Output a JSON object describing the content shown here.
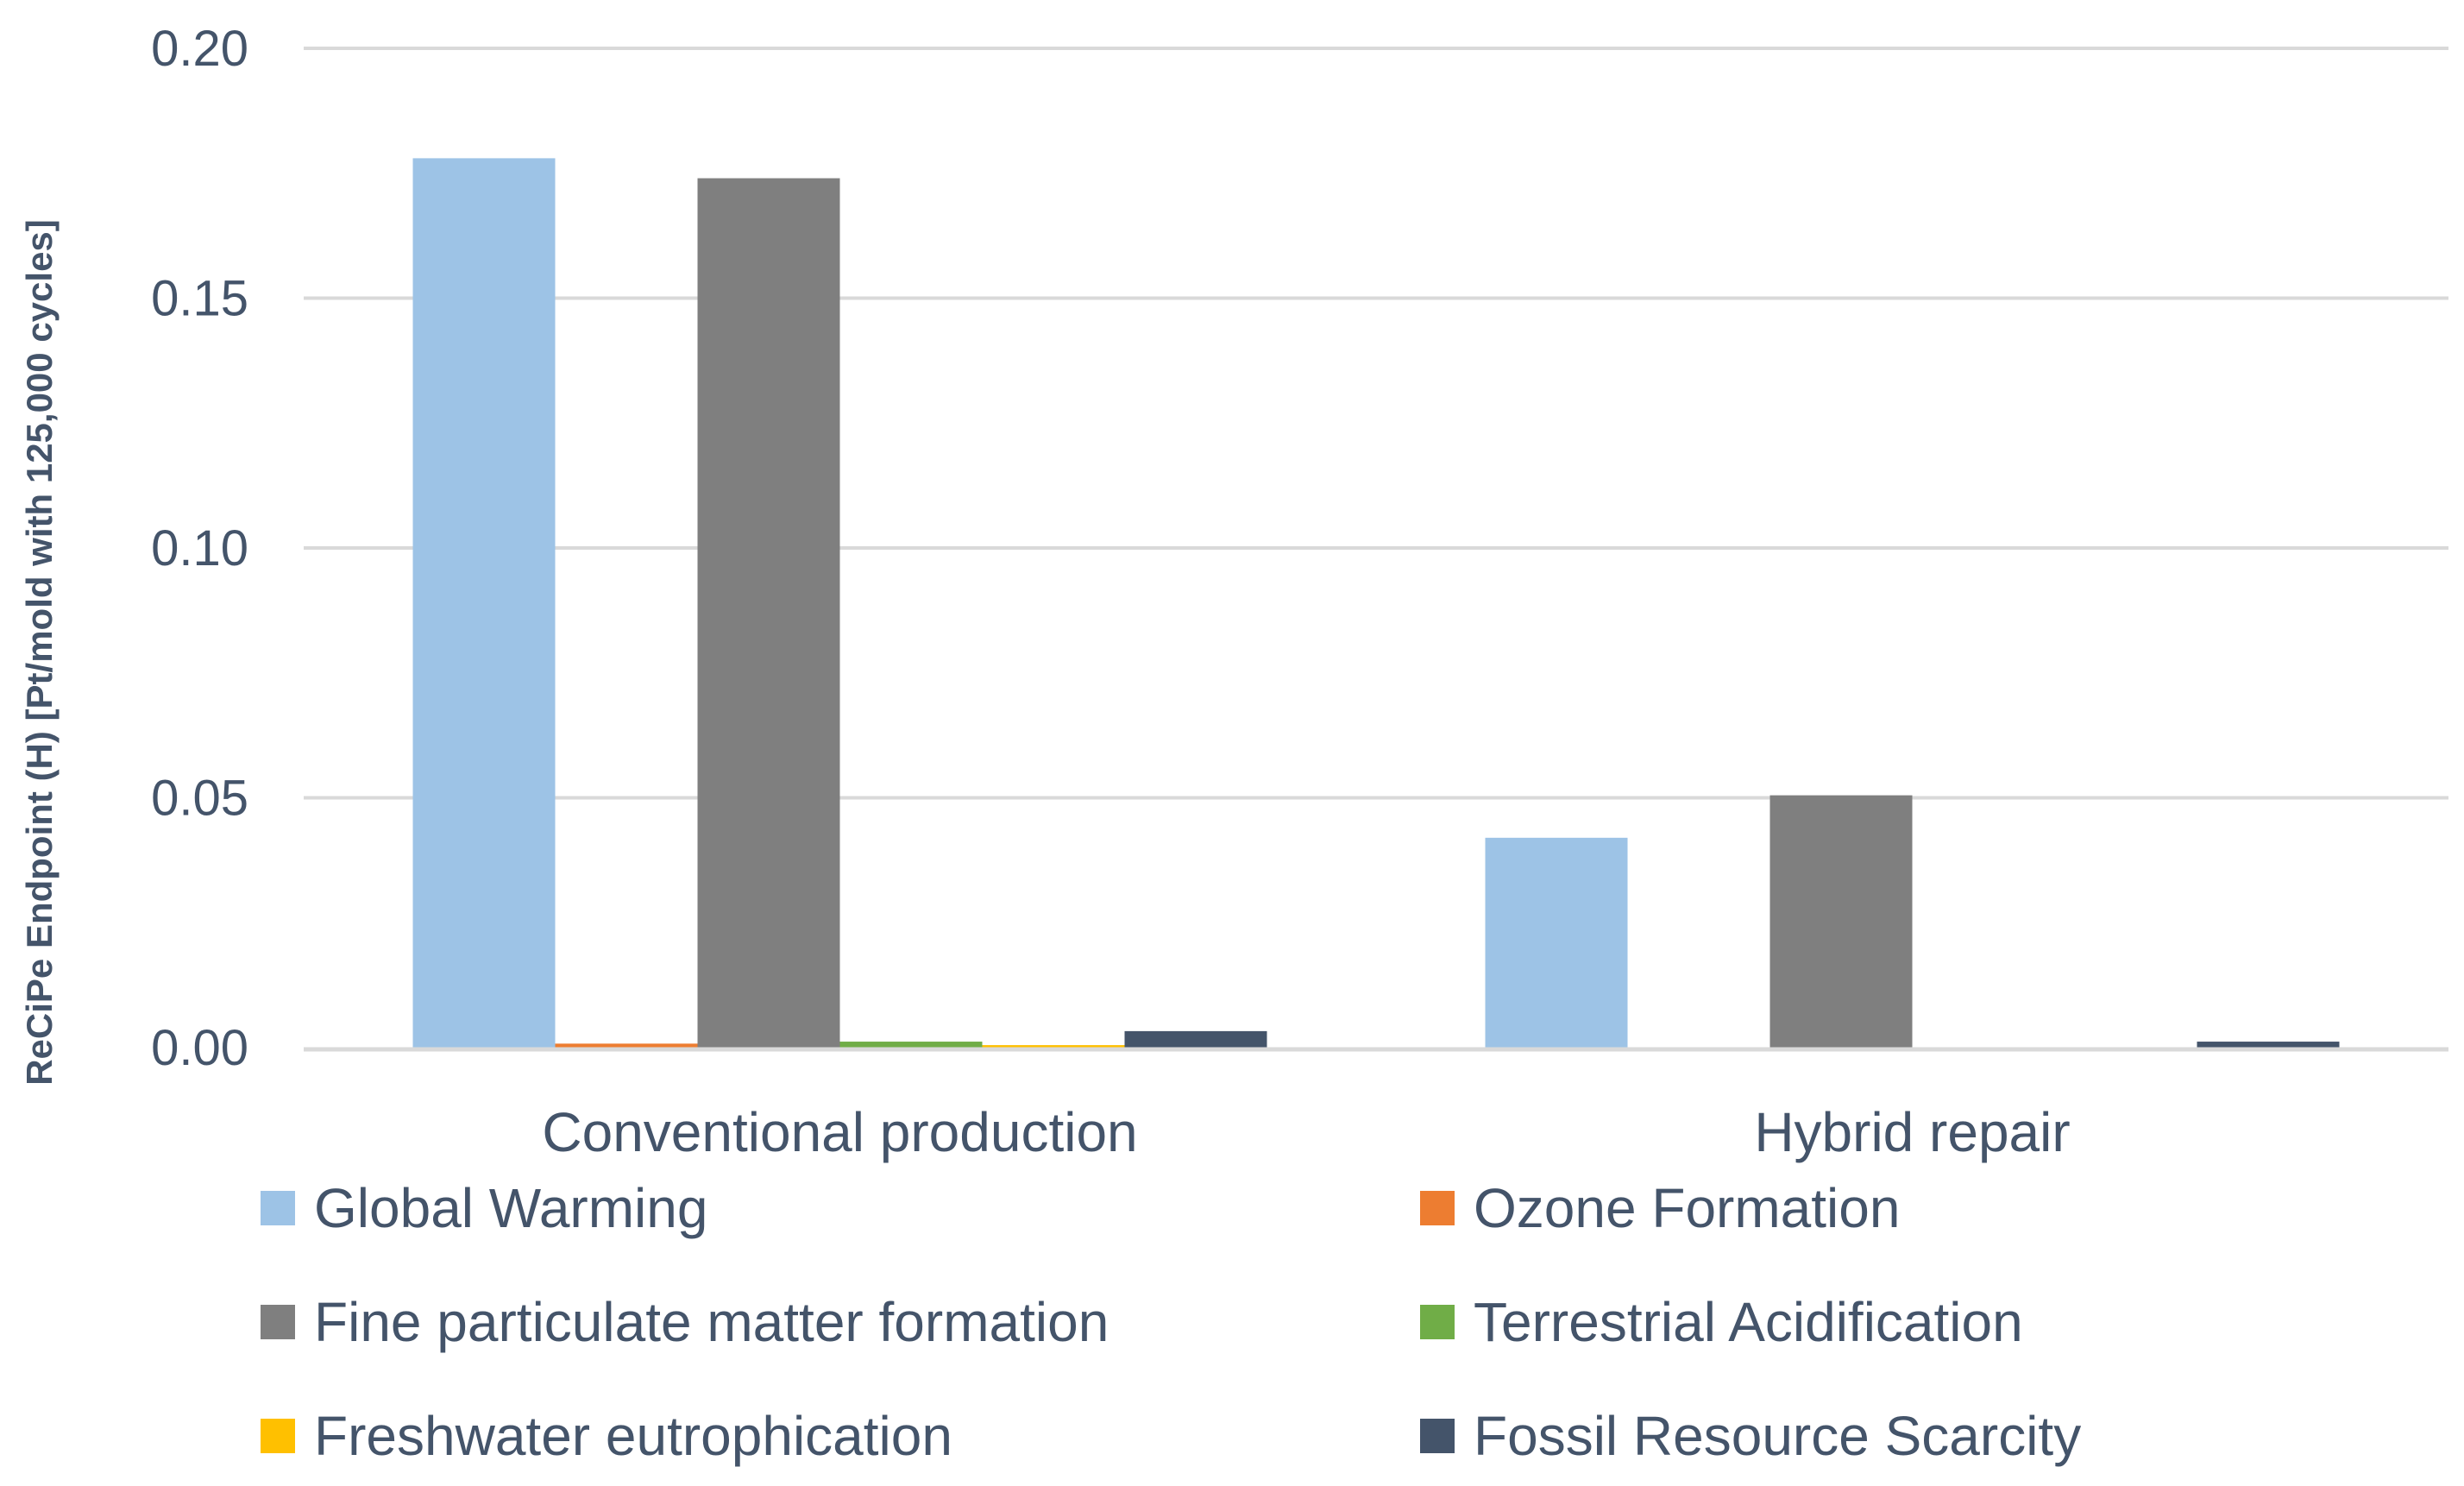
{
  "chart_data": {
    "type": "bar",
    "title": "",
    "xlabel": "",
    "ylabel": "ReCiPe Endpoint (H) [Pt/mold with 125,000 cycles]",
    "ylim": [
      0,
      0.2
    ],
    "yticks": [
      "0.00",
      "0.05",
      "0.10",
      "0.15",
      "0.20"
    ],
    "ytick_values": [
      0,
      0.05,
      0.1,
      0.15,
      0.2
    ],
    "grid": true,
    "legend_position": "bottom",
    "categories": [
      "Conventional production",
      "Hybrid repair"
    ],
    "series": [
      {
        "name": "Global Warming",
        "color": "#9DC3E6",
        "values": [
          0.178,
          0.042
        ]
      },
      {
        "name": "Ozone Formation",
        "color": "#ED7D31",
        "values": [
          0.0008,
          0.0
        ]
      },
      {
        "name": "Fine particulate matter formation",
        "color": "#7F7F7F",
        "values": [
          0.174,
          0.0505
        ]
      },
      {
        "name": "Terrestrial Acidification",
        "color": "#70AD47",
        "values": [
          0.0012,
          0.0
        ]
      },
      {
        "name": "Freshwater eutrophication",
        "color": "#FFC000",
        "values": [
          0.0005,
          0.0
        ]
      },
      {
        "name": "Fossil Resource Scarcity",
        "color": "#44546A",
        "values": [
          0.0033,
          0.0012
        ]
      }
    ]
  }
}
